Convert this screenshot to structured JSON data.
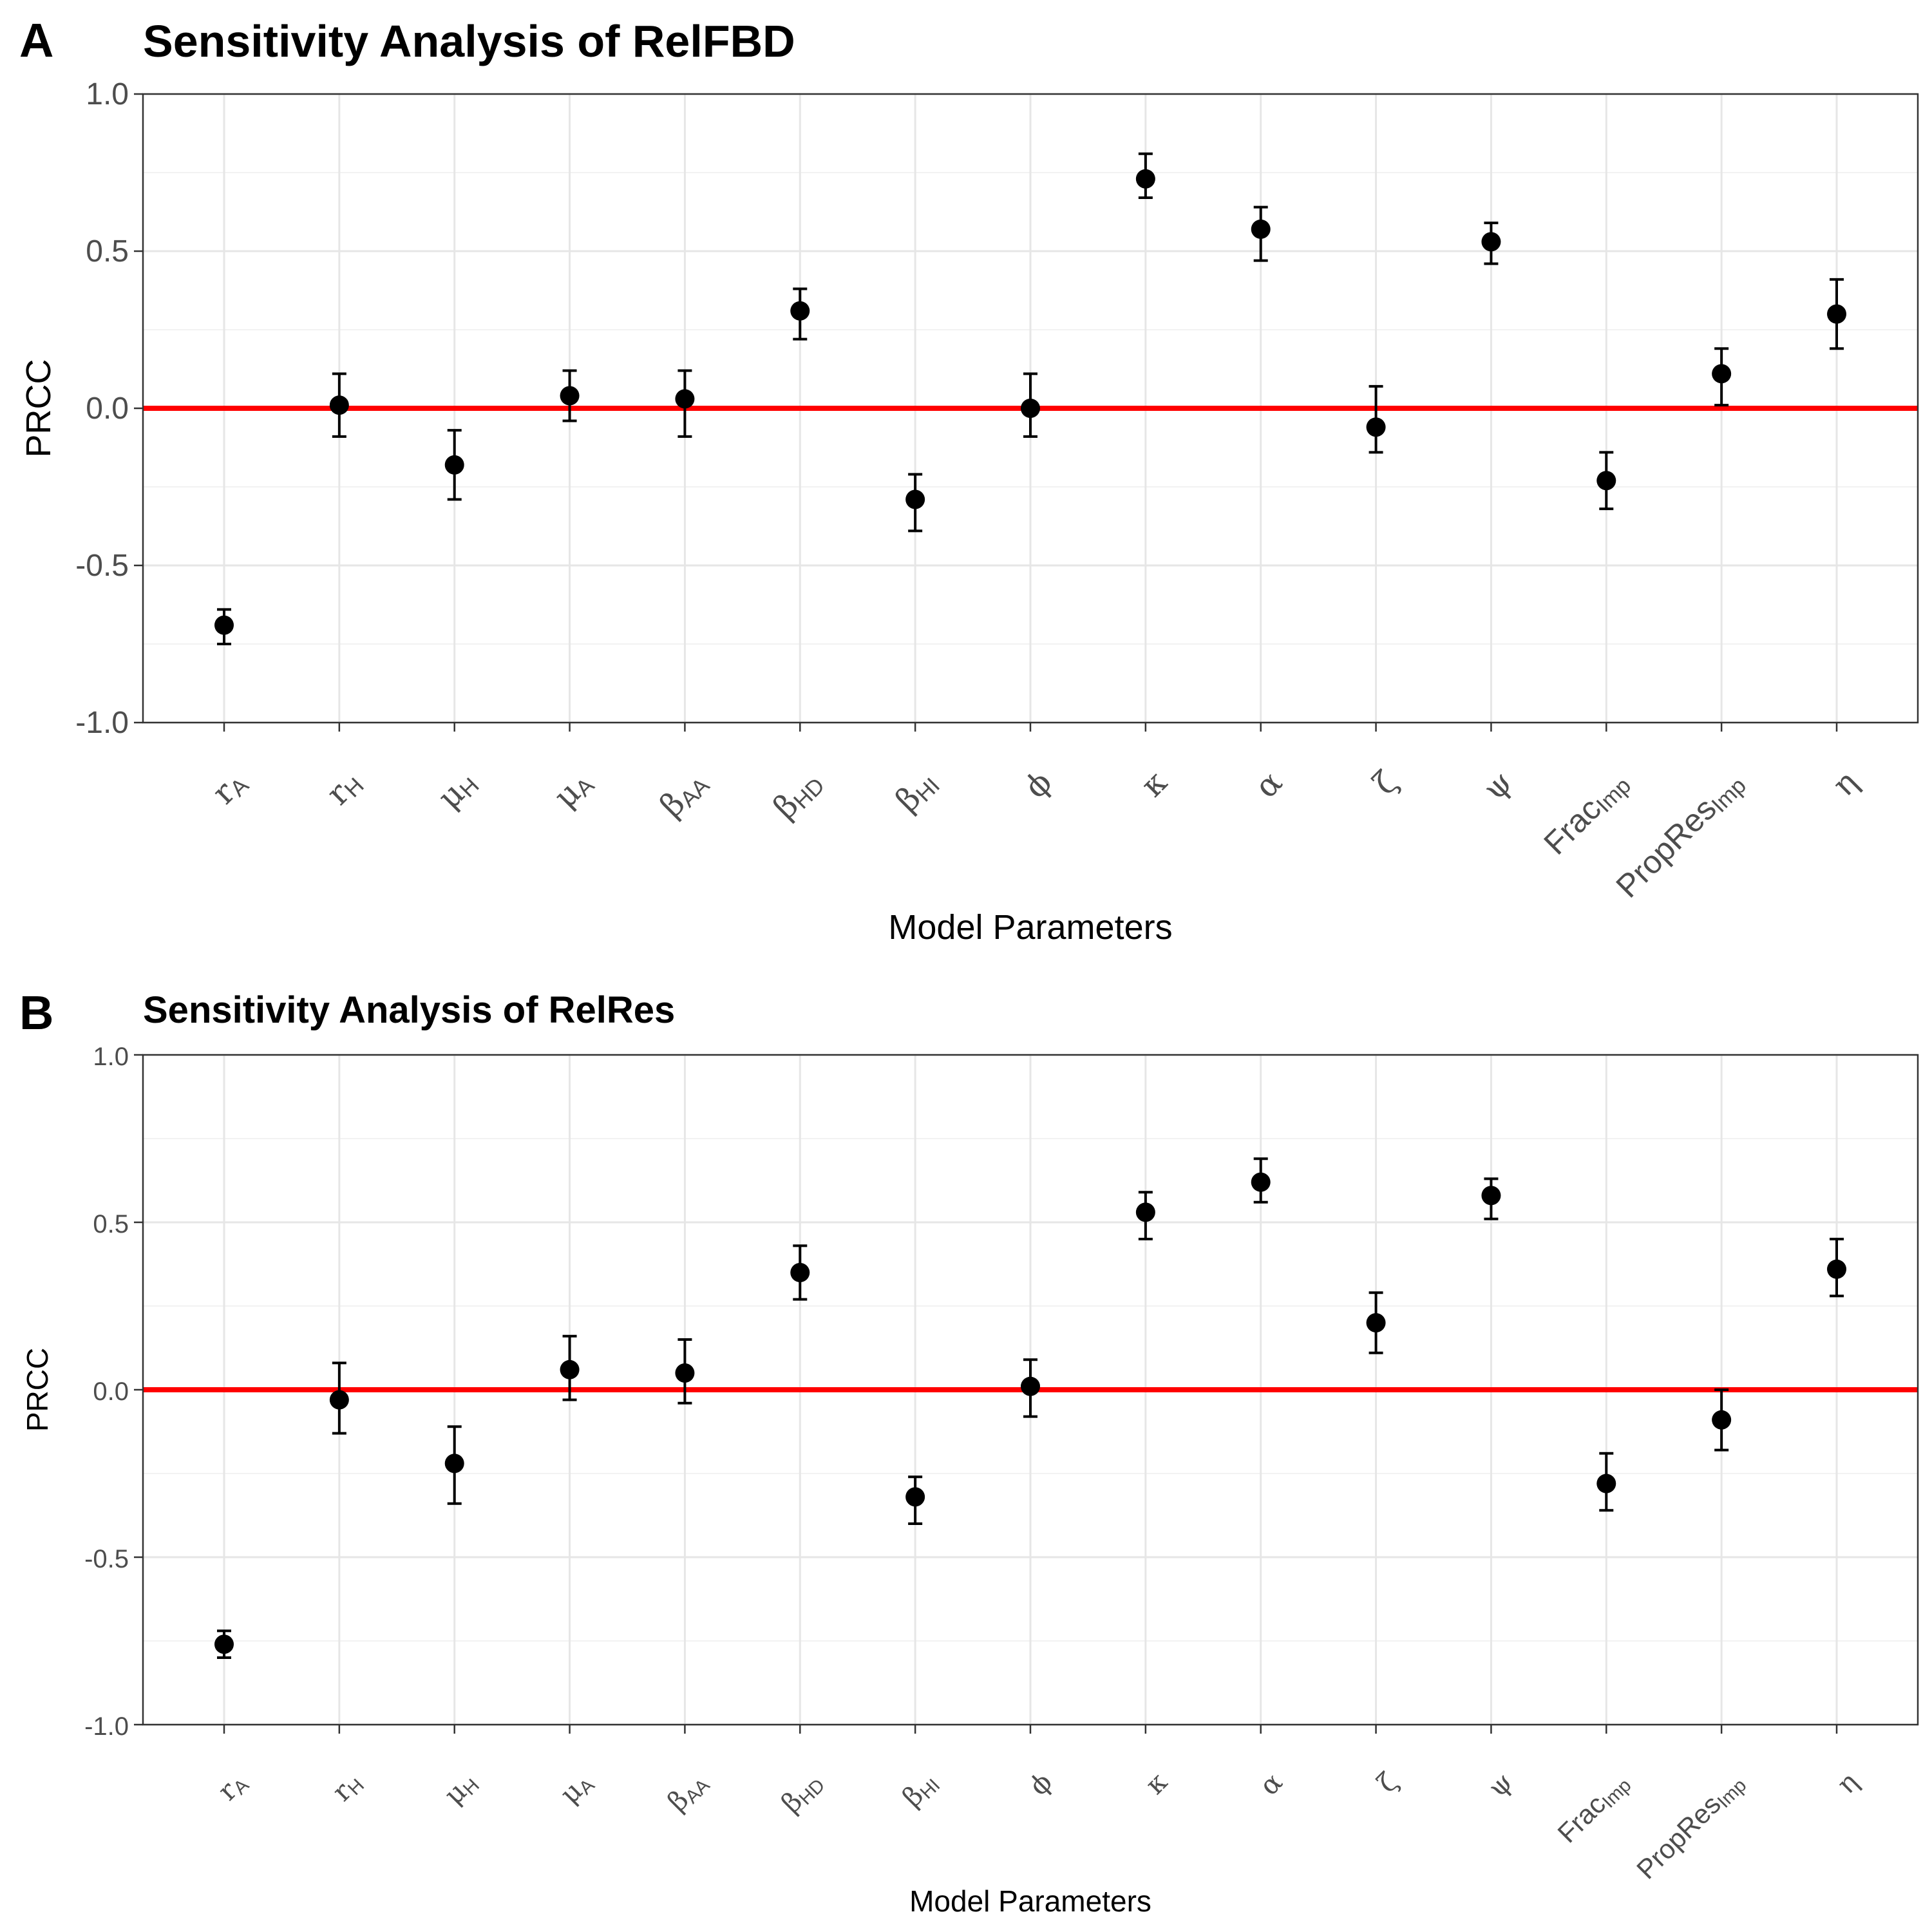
{
  "chart_data": [
    {
      "panel": "A",
      "type": "scatter",
      "title": "Sensitivity Analysis of RelFBD",
      "xlabel": "Model Parameters",
      "ylabel": "PRCC",
      "ylim": [
        -1.0,
        1.0
      ],
      "yticks": [
        "1.0",
        "0.5",
        "0.0",
        "-0.5",
        "-1.0"
      ],
      "reference_line": {
        "y": 0.0,
        "color": "#ff0000"
      },
      "grid": true,
      "categories": [
        {
          "base": "r",
          "sub": "A"
        },
        {
          "base": "r",
          "sub": "H"
        },
        {
          "base": "μ",
          "sub": "H"
        },
        {
          "base": "μ",
          "sub": "A"
        },
        {
          "base": "β",
          "sub": "AA"
        },
        {
          "base": "β",
          "sub": "HD"
        },
        {
          "base": "β",
          "sub": "HI"
        },
        {
          "base": "ϕ",
          "sub": ""
        },
        {
          "base": "κ",
          "sub": ""
        },
        {
          "base": "α",
          "sub": ""
        },
        {
          "base": "ζ",
          "sub": ""
        },
        {
          "base": "ψ",
          "sub": ""
        },
        {
          "base": "Frac",
          "sub": "Imp"
        },
        {
          "base": "PropRes",
          "sub": "Imp"
        },
        {
          "base": "η",
          "sub": ""
        }
      ],
      "values": [
        -0.69,
        0.01,
        -0.18,
        0.04,
        0.03,
        0.31,
        -0.29,
        0.0,
        0.73,
        0.57,
        -0.06,
        0.53,
        -0.23,
        0.11,
        0.3
      ],
      "ci_low": [
        -0.75,
        -0.09,
        -0.29,
        -0.04,
        -0.09,
        0.22,
        -0.39,
        -0.09,
        0.67,
        0.47,
        -0.14,
        0.46,
        -0.32,
        0.01,
        0.19
      ],
      "ci_high": [
        -0.64,
        0.11,
        -0.07,
        0.12,
        0.12,
        0.38,
        -0.21,
        0.11,
        0.81,
        0.64,
        0.07,
        0.59,
        -0.14,
        0.19,
        0.41
      ]
    },
    {
      "panel": "B",
      "type": "scatter",
      "title": "Sensitivity Analysis of RelRes",
      "xlabel": "Model Parameters",
      "ylabel": "PRCC",
      "ylim": [
        -1.0,
        1.0
      ],
      "yticks": [
        "1.0",
        "0.5",
        "0.0",
        "-0.5",
        "-1.0"
      ],
      "reference_line": {
        "y": 0.0,
        "color": "#ff0000"
      },
      "grid": true,
      "categories": [
        {
          "base": "r",
          "sub": "A"
        },
        {
          "base": "r",
          "sub": "H"
        },
        {
          "base": "μ",
          "sub": "H"
        },
        {
          "base": "μ",
          "sub": "A"
        },
        {
          "base": "β",
          "sub": "AA"
        },
        {
          "base": "β",
          "sub": "HD"
        },
        {
          "base": "β",
          "sub": "HI"
        },
        {
          "base": "ϕ",
          "sub": ""
        },
        {
          "base": "κ",
          "sub": ""
        },
        {
          "base": "α",
          "sub": ""
        },
        {
          "base": "ζ",
          "sub": ""
        },
        {
          "base": "ψ",
          "sub": ""
        },
        {
          "base": "Frac",
          "sub": "Imp"
        },
        {
          "base": "PropRes",
          "sub": "Imp"
        },
        {
          "base": "η",
          "sub": ""
        }
      ],
      "values": [
        -0.76,
        -0.03,
        -0.22,
        0.06,
        0.05,
        0.35,
        -0.32,
        0.01,
        0.53,
        0.62,
        0.2,
        0.58,
        -0.28,
        -0.09,
        0.36
      ],
      "ci_low": [
        -0.8,
        -0.13,
        -0.34,
        -0.03,
        -0.04,
        0.27,
        -0.4,
        -0.08,
        0.45,
        0.56,
        0.11,
        0.51,
        -0.36,
        -0.18,
        0.28
      ],
      "ci_high": [
        -0.72,
        0.08,
        -0.11,
        0.16,
        0.15,
        0.43,
        -0.26,
        0.09,
        0.59,
        0.69,
        0.29,
        0.63,
        -0.19,
        0.0,
        0.45
      ]
    }
  ]
}
